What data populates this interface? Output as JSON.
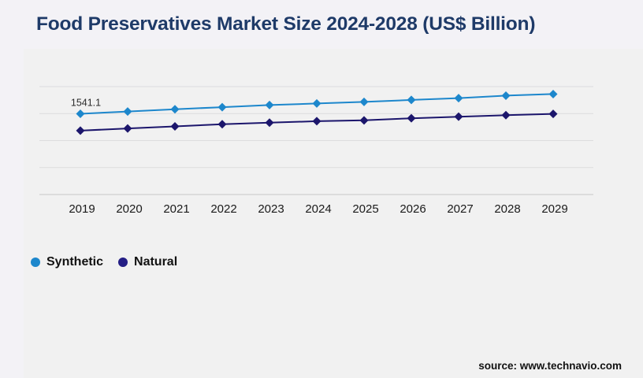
{
  "title": "Food Preservatives Market Size 2024-2028 (US$ Billion)",
  "source": "source: www.technavio.com",
  "colors": {
    "page_background": "#f3f2f6",
    "panel_background": "#f1f1f1",
    "title_text": "#1e3a68",
    "gridline": "#dcdcde",
    "axis_line": "#c6c6c8",
    "axis_tick_text": "#1a1a1a",
    "data_label_text": "#2b2b2b",
    "synthetic_series": "#1d87cc",
    "natural_series": "#1c166c"
  },
  "legend": [
    {
      "label": "Synthetic",
      "color": "#1d87cc"
    },
    {
      "label": "Natural",
      "color": "#241e85"
    }
  ],
  "chart_data": {
    "type": "line",
    "title": "Food Preservatives Market Size 2024-2028 (US$ Billion)",
    "xlabel": "",
    "ylabel": "",
    "categories": [
      "2019",
      "2020",
      "2021",
      "2022",
      "2023",
      "2024",
      "2025",
      "2026",
      "2027",
      "2028",
      "2029"
    ],
    "series": [
      {
        "name": "Synthetic",
        "color": "#1d87cc",
        "marker": "diamond",
        "values": [
          1541.1,
          1585,
          1628,
          1668,
          1708,
          1738,
          1768,
          1806,
          1840,
          1888,
          1918
        ]
      },
      {
        "name": "Natural",
        "color": "#1c166c",
        "marker": "diamond",
        "values": [
          1220,
          1262,
          1300,
          1342,
          1372,
          1400,
          1416,
          1456,
          1486,
          1514,
          1540
        ]
      }
    ],
    "ylim": [
      0,
      2060
    ],
    "y_axis_labels_visible": false,
    "grid": "horizontal",
    "gridline_count": 5,
    "legend_position": "bottom-left",
    "data_labels": [
      {
        "series": "Synthetic",
        "category": "2019",
        "text": "1541.1",
        "value": 1541.1
      }
    ],
    "note": "Only the 2019 Synthetic point is labeled (1541.1); all other values estimated from plotted positions"
  }
}
